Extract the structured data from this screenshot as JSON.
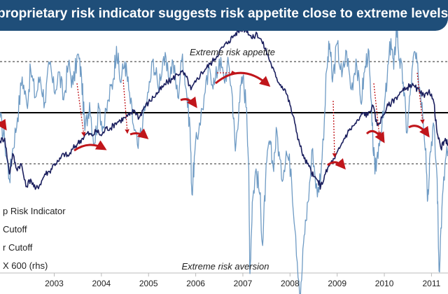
{
  "header": {
    "title": "proprietary risk indicator suggests risk appetite close to extreme levels"
  },
  "colors": {
    "title_bg": "#1f4e79",
    "indicator": "#6f9bc4",
    "stoxx": "#1b1f5e",
    "arrow": "#c0161b",
    "cutoff": "#555555",
    "midline": "#000000"
  },
  "chart_data": {
    "type": "line",
    "x_ticks": [
      "2003",
      "2004",
      "2005",
      "2006",
      "2007",
      "2008",
      "2009",
      "2010",
      "2011"
    ],
    "x_range": [
      2002.35,
      2011.85
    ],
    "annotations": {
      "top": "Extreme risk appetite",
      "bottom": "Extreme risk aversion"
    },
    "legend": [
      "p Risk Indicator",
      "Cutoff",
      "r Cutoff",
      "X 600 (rhs)"
    ],
    "reference_lines": {
      "upper_cutoff": 2,
      "midline": 0,
      "lower_cutoff": -2
    },
    "series": [
      {
        "name": "p Risk Indicator",
        "axis": "left",
        "points": [
          [
            2002.35,
            -0.2
          ],
          [
            2002.45,
            -1.1
          ],
          [
            2002.55,
            -2.6
          ],
          [
            2002.62,
            -1.4
          ],
          [
            2002.72,
            -0.2
          ],
          [
            2002.82,
            1.4
          ],
          [
            2002.92,
            0.3
          ],
          [
            2003.0,
            1.7
          ],
          [
            2003.1,
            0.6
          ],
          [
            2003.2,
            1.4
          ],
          [
            2003.3,
            0.4
          ],
          [
            2003.4,
            1.9
          ],
          [
            2003.5,
            0.8
          ],
          [
            2003.6,
            1.6
          ],
          [
            2003.7,
            0.5
          ],
          [
            2003.8,
            1.9
          ],
          [
            2003.9,
            1.1
          ],
          [
            2004.0,
            2.3
          ],
          [
            2004.08,
            1.4
          ],
          [
            2004.15,
            -0.7
          ],
          [
            2004.25,
            0.4
          ],
          [
            2004.35,
            -1.2
          ],
          [
            2004.45,
            0.2
          ],
          [
            2004.55,
            -0.6
          ],
          [
            2004.65,
            0.5
          ],
          [
            2004.75,
            1.3
          ],
          [
            2004.82,
            2.6
          ],
          [
            2004.9,
            1.2
          ],
          [
            2005.0,
            2.0
          ],
          [
            2005.08,
            0.9
          ],
          [
            2005.18,
            -0.5
          ],
          [
            2005.28,
            -1.4
          ],
          [
            2005.38,
            -0.3
          ],
          [
            2005.5,
            0.8
          ],
          [
            2005.6,
            2.1
          ],
          [
            2005.7,
            1.0
          ],
          [
            2005.82,
            2.2
          ],
          [
            2005.92,
            1.4
          ],
          [
            2006.02,
            2.0
          ],
          [
            2006.12,
            0.6
          ],
          [
            2006.22,
            2.3
          ],
          [
            2006.3,
            0.9
          ],
          [
            2006.38,
            -0.6
          ],
          [
            2006.42,
            -3.2
          ],
          [
            2006.48,
            -1.6
          ],
          [
            2006.58,
            -0.4
          ],
          [
            2006.7,
            0.8
          ],
          [
            2006.8,
            1.7
          ],
          [
            2006.9,
            1.1
          ],
          [
            2007.0,
            2.1
          ],
          [
            2007.1,
            1.3
          ],
          [
            2007.2,
            1.9
          ],
          [
            2007.28,
            0.6
          ],
          [
            2007.34,
            -1.5
          ],
          [
            2007.42,
            0.4
          ],
          [
            2007.5,
            1.4
          ],
          [
            2007.58,
            0.2
          ],
          [
            2007.62,
            -1.9
          ],
          [
            2007.65,
            -6.3
          ],
          [
            2007.7,
            -3.5
          ],
          [
            2007.78,
            -2.2
          ],
          [
            2007.86,
            -3.2
          ],
          [
            2007.92,
            -5.2
          ],
          [
            2007.98,
            -2.7
          ],
          [
            2008.06,
            -1.1
          ],
          [
            2008.14,
            -2.1
          ],
          [
            2008.22,
            -0.7
          ],
          [
            2008.32,
            -2.6
          ],
          [
            2008.42,
            -1.5
          ],
          [
            2008.52,
            -2.2
          ],
          [
            2008.62,
            -4.8
          ],
          [
            2008.72,
            -7.3
          ],
          [
            2008.8,
            -4.8
          ],
          [
            2008.88,
            -3.5
          ],
          [
            2008.98,
            -1.4
          ],
          [
            2009.08,
            -3.3
          ],
          [
            2009.18,
            -1.8
          ],
          [
            2009.28,
            1.7
          ],
          [
            2009.34,
            2.7
          ],
          [
            2009.4,
            1.2
          ],
          [
            2009.5,
            2.7
          ],
          [
            2009.6,
            1.4
          ],
          [
            2009.7,
            2.4
          ],
          [
            2009.8,
            0.9
          ],
          [
            2009.9,
            2.1
          ],
          [
            2010.0,
            0.4
          ],
          [
            2010.08,
            1.6
          ],
          [
            2010.16,
            2.5
          ],
          [
            2010.24,
            -0.5
          ],
          [
            2010.3,
            -2.4
          ],
          [
            2010.38,
            -1.2
          ],
          [
            2010.48,
            -0.2
          ],
          [
            2010.56,
            1.3
          ],
          [
            2010.64,
            2.9
          ],
          [
            2010.7,
            1.7
          ],
          [
            2010.76,
            3.4
          ],
          [
            2010.82,
            2.1
          ],
          [
            2010.9,
            1.2
          ],
          [
            2010.98,
            -0.8
          ],
          [
            2011.06,
            1.0
          ],
          [
            2011.14,
            2.4
          ],
          [
            2011.22,
            1.4
          ],
          [
            2011.3,
            0.4
          ],
          [
            2011.38,
            -1.4
          ],
          [
            2011.42,
            -3.4
          ],
          [
            2011.46,
            -1.8
          ],
          [
            2011.54,
            -0.4
          ],
          [
            2011.62,
            -2.6
          ],
          [
            2011.66,
            -6.2
          ],
          [
            2011.72,
            -3.8
          ],
          [
            2011.8,
            -1.8
          ],
          [
            2011.85,
            -1.5
          ]
        ]
      },
      {
        "name": "X 600 (rhs)",
        "axis": "right",
        "points": [
          [
            2002.35,
            -1.1
          ],
          [
            2002.45,
            -1.0
          ],
          [
            2002.55,
            -2.4
          ],
          [
            2002.62,
            -1.6
          ],
          [
            2002.7,
            -2.2
          ],
          [
            2002.8,
            -2.0
          ],
          [
            2002.9,
            -2.9
          ],
          [
            2003.0,
            -2.6
          ],
          [
            2003.1,
            -3.0
          ],
          [
            2003.2,
            -2.8
          ],
          [
            2003.3,
            -2.4
          ],
          [
            2003.4,
            -2.3
          ],
          [
            2003.5,
            -2.0
          ],
          [
            2003.6,
            -1.9
          ],
          [
            2003.7,
            -1.6
          ],
          [
            2003.8,
            -1.7
          ],
          [
            2003.9,
            -1.4
          ],
          [
            2004.0,
            -1.2
          ],
          [
            2004.1,
            -1.0
          ],
          [
            2004.2,
            -0.8
          ],
          [
            2004.3,
            -0.9
          ],
          [
            2004.4,
            -0.7
          ],
          [
            2004.5,
            -0.9
          ],
          [
            2004.6,
            -0.6
          ],
          [
            2004.7,
            -0.6
          ],
          [
            2004.8,
            -0.4
          ],
          [
            2004.9,
            -0.3
          ],
          [
            2005.0,
            -0.2
          ],
          [
            2005.1,
            -0.1
          ],
          [
            2005.2,
            0.1
          ],
          [
            2005.3,
            -0.2
          ],
          [
            2005.4,
            0.2
          ],
          [
            2005.5,
            0.4
          ],
          [
            2005.6,
            0.6
          ],
          [
            2005.7,
            0.8
          ],
          [
            2005.8,
            1.0
          ],
          [
            2005.9,
            1.2
          ],
          [
            2006.0,
            1.3
          ],
          [
            2006.1,
            1.5
          ],
          [
            2006.2,
            1.6
          ],
          [
            2006.3,
            1.4
          ],
          [
            2006.4,
            0.9
          ],
          [
            2006.5,
            1.2
          ],
          [
            2006.6,
            1.5
          ],
          [
            2006.7,
            1.7
          ],
          [
            2006.8,
            1.9
          ],
          [
            2006.9,
            2.1
          ],
          [
            2007.0,
            2.4
          ],
          [
            2007.1,
            2.6
          ],
          [
            2007.2,
            2.8
          ],
          [
            2007.3,
            3.0
          ],
          [
            2007.4,
            3.2
          ],
          [
            2007.5,
            3.3
          ],
          [
            2007.6,
            3.2
          ],
          [
            2007.7,
            2.9
          ],
          [
            2007.8,
            3.1
          ],
          [
            2007.9,
            2.8
          ],
          [
            2008.0,
            2.4
          ],
          [
            2008.1,
            1.9
          ],
          [
            2008.2,
            1.4
          ],
          [
            2008.3,
            1.1
          ],
          [
            2008.4,
            0.9
          ],
          [
            2008.5,
            0.3
          ],
          [
            2008.6,
            -0.4
          ],
          [
            2008.7,
            -1.2
          ],
          [
            2008.8,
            -1.8
          ],
          [
            2008.9,
            -2.1
          ],
          [
            2009.0,
            -2.5
          ],
          [
            2009.1,
            -2.7
          ],
          [
            2009.15,
            -2.9
          ],
          [
            2009.25,
            -2.4
          ],
          [
            2009.35,
            -2.0
          ],
          [
            2009.45,
            -1.8
          ],
          [
            2009.55,
            -1.4
          ],
          [
            2009.65,
            -1.0
          ],
          [
            2009.75,
            -0.7
          ],
          [
            2009.85,
            -0.5
          ],
          [
            2009.95,
            -0.3
          ],
          [
            2010.05,
            0.0
          ],
          [
            2010.15,
            -0.1
          ],
          [
            2010.25,
            0.3
          ],
          [
            2010.35,
            -0.5
          ],
          [
            2010.45,
            -0.2
          ],
          [
            2010.55,
            0.2
          ],
          [
            2010.65,
            0.4
          ],
          [
            2010.75,
            0.6
          ],
          [
            2010.85,
            0.8
          ],
          [
            2010.95,
            0.9
          ],
          [
            2011.05,
            1.1
          ],
          [
            2011.15,
            1.0
          ],
          [
            2011.25,
            0.8
          ],
          [
            2011.35,
            0.6
          ],
          [
            2011.45,
            0.9
          ],
          [
            2011.55,
            0.4
          ],
          [
            2011.62,
            -0.8
          ],
          [
            2011.7,
            -1.4
          ],
          [
            2011.78,
            -1.1
          ],
          [
            2011.85,
            -1.2
          ]
        ]
      }
    ]
  }
}
